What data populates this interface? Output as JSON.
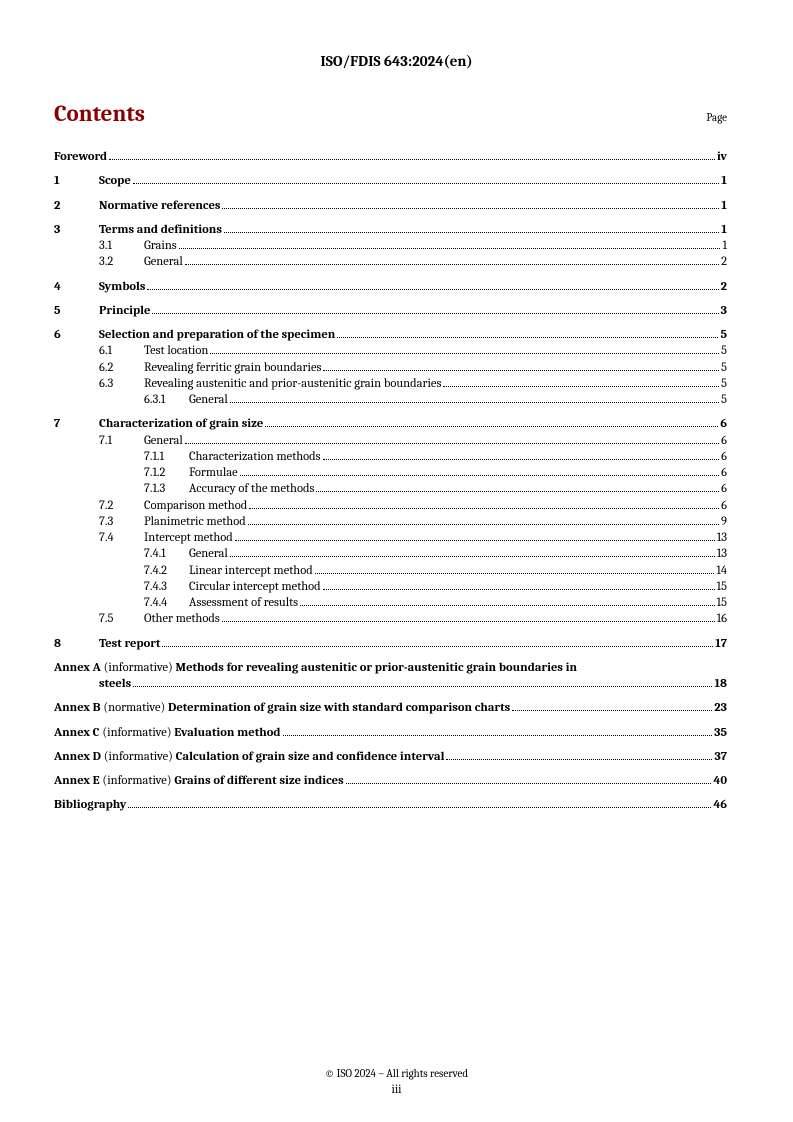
{
  "header": "ISO/FDIS 643:2024(en)",
  "title": "Contents",
  "pageLabel": "Page",
  "colors": {
    "heading": "#8b0000",
    "text": "#000000",
    "bg": "#ffffff"
  },
  "entries": [
    {
      "type": "top",
      "label": "Foreword",
      "page": "iv",
      "gap": false
    },
    {
      "type": "num",
      "num": "1",
      "label": "Scope",
      "page": "1",
      "gap": true
    },
    {
      "type": "num",
      "num": "2",
      "label": "Normative references",
      "page": "1",
      "gap": true
    },
    {
      "type": "num",
      "num": "3",
      "label": "Terms and definitions",
      "page": "1",
      "gap": true
    },
    {
      "type": "sub",
      "num": "3.1",
      "label": "Grains",
      "page": "1"
    },
    {
      "type": "sub",
      "num": "3.2",
      "label": "General",
      "page": "2"
    },
    {
      "type": "num",
      "num": "4",
      "label": "Symbols",
      "page": "2",
      "gap": true
    },
    {
      "type": "num",
      "num": "5",
      "label": "Principle",
      "page": "3",
      "gap": true
    },
    {
      "type": "num",
      "num": "6",
      "label": "Selection and preparation of the specimen",
      "page": "5",
      "gap": true
    },
    {
      "type": "sub",
      "num": "6.1",
      "label": "Test location",
      "page": "5"
    },
    {
      "type": "sub",
      "num": "6.2",
      "label": "Revealing ferritic grain boundaries",
      "page": "5"
    },
    {
      "type": "sub",
      "num": "6.3",
      "label": "Revealing austenitic and prior-austenitic grain boundaries",
      "page": "5"
    },
    {
      "type": "subsub",
      "num": "6.3.1",
      "label": "General",
      "page": "5"
    },
    {
      "type": "num",
      "num": "7",
      "label": "Characterization of grain size",
      "page": "6",
      "gap": true
    },
    {
      "type": "sub",
      "num": "7.1",
      "label": "General",
      "page": "6"
    },
    {
      "type": "subsub",
      "num": "7.1.1",
      "label": "Characterization methods",
      "page": "6"
    },
    {
      "type": "subsub",
      "num": "7.1.2",
      "label": "Formulae",
      "page": "6"
    },
    {
      "type": "subsub",
      "num": "7.1.3",
      "label": "Accuracy of the methods",
      "page": "6"
    },
    {
      "type": "sub",
      "num": "7.2",
      "label": "Comparison method",
      "page": "6"
    },
    {
      "type": "sub",
      "num": "7.3",
      "label": "Planimetric method",
      "page": "9"
    },
    {
      "type": "sub",
      "num": "7.4",
      "label": "Intercept method",
      "page": "13"
    },
    {
      "type": "subsub",
      "num": "7.4.1",
      "label": "General",
      "page": "13"
    },
    {
      "type": "subsub",
      "num": "7.4.2",
      "label": "Linear intercept method",
      "page": "14"
    },
    {
      "type": "subsub",
      "num": "7.4.3",
      "label": "Circular intercept method",
      "page": "15"
    },
    {
      "type": "subsub",
      "num": "7.4.4",
      "label": "Assessment of results",
      "page": "15"
    },
    {
      "type": "sub",
      "num": "7.5",
      "label": "Other methods",
      "page": "16"
    },
    {
      "type": "num",
      "num": "8",
      "label": "Test report",
      "page": "17",
      "gap": true
    },
    {
      "type": "annex2",
      "prefix": "Annex A",
      "qual": "(informative)",
      "boldtext": "Methods for revealing austenitic or prior-austenitic grain boundaries in",
      "line2": "steels",
      "page": "18",
      "gap": true
    },
    {
      "type": "annex",
      "prefix": "Annex B",
      "qual": "(normative)",
      "boldtext": "Determination of grain size with standard comparison charts",
      "page": "23",
      "gap": true
    },
    {
      "type": "annex",
      "prefix": "Annex C",
      "qual": "(informative)",
      "boldtext": "Evaluation method",
      "page": "35",
      "gap": true
    },
    {
      "type": "annex",
      "prefix": "Annex D",
      "qual": "(informative)",
      "boldtext": "Calculation of grain size and confidence interval",
      "page": "37",
      "gap": true
    },
    {
      "type": "annex",
      "prefix": "Annex E",
      "qual": "(informative)",
      "boldtext": "Grains of different size indices",
      "page": "40",
      "gap": true
    },
    {
      "type": "top",
      "label": "Bibliography",
      "page": "46",
      "gap": true
    }
  ],
  "footer": "© ISO 2024 – All rights reserved",
  "pageNumber": "iii"
}
